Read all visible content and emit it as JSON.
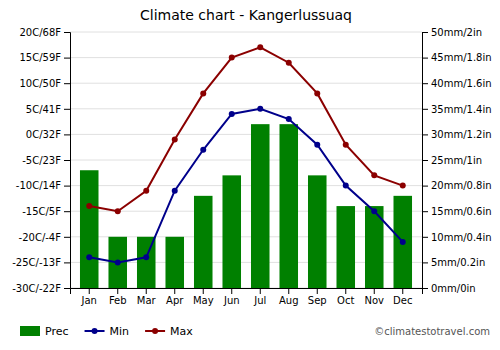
{
  "chart_data": {
    "type": "bar",
    "title": "Climate chart - Kangerlussuaq",
    "categories": [
      "Jan",
      "Feb",
      "Mar",
      "Apr",
      "May",
      "Jun",
      "Jul",
      "Aug",
      "Sep",
      "Oct",
      "Nov",
      "Dec"
    ],
    "series": [
      {
        "name": "Prec",
        "type": "bar",
        "axis": "y2",
        "color": "#008000",
        "values": [
          23,
          10,
          10,
          10,
          18,
          22,
          32,
          32,
          22,
          16,
          16,
          18
        ]
      },
      {
        "name": "Min",
        "type": "line",
        "marker": "circle",
        "color": "#00008B",
        "values": [
          -24,
          -25,
          -24,
          -11,
          -3,
          4,
          5,
          3,
          -2,
          -10,
          -15,
          -21
        ]
      },
      {
        "name": "Max",
        "type": "line",
        "marker": "circle",
        "color": "#8B0000",
        "values": [
          -14,
          -15,
          -11,
          -1,
          8,
          15,
          17,
          14,
          8,
          -2,
          -8,
          -10
        ]
      }
    ],
    "ylim": [
      -30,
      20
    ],
    "yticks": [
      {
        "value": -30,
        "label": "-30C/-22F"
      },
      {
        "value": -25,
        "label": "-25C/-13F"
      },
      {
        "value": -20,
        "label": "-20C/-4F"
      },
      {
        "value": -15,
        "label": "-15C/5F"
      },
      {
        "value": -10,
        "label": "-10C/14F"
      },
      {
        "value": -5,
        "label": "-5C/23F"
      },
      {
        "value": 0,
        "label": "0C/32F"
      },
      {
        "value": 5,
        "label": "5C/41F"
      },
      {
        "value": 10,
        "label": "10C/50F"
      },
      {
        "value": 15,
        "label": "15C/59F"
      },
      {
        "value": 20,
        "label": "20C/68F"
      }
    ],
    "y2lim": [
      0,
      50
    ],
    "y2ticks": [
      {
        "value": 0,
        "label": "0mm/0in"
      },
      {
        "value": 5,
        "label": "5mm/0.2in"
      },
      {
        "value": 10,
        "label": "10mm/0.4in"
      },
      {
        "value": 15,
        "label": "15mm/0.6in"
      },
      {
        "value": 20,
        "label": "20mm/0.8in"
      },
      {
        "value": 25,
        "label": "25mm/1in"
      },
      {
        "value": 30,
        "label": "30mm/1.2in"
      },
      {
        "value": 35,
        "label": "35mm/1.4in"
      },
      {
        "value": 40,
        "label": "40mm/1.6in"
      },
      {
        "value": 45,
        "label": "45mm/1.8in"
      },
      {
        "value": 50,
        "label": "50mm/2in"
      }
    ],
    "grid": true,
    "legend": "bottom",
    "annotations": [
      "©climatestotravel.com"
    ]
  }
}
